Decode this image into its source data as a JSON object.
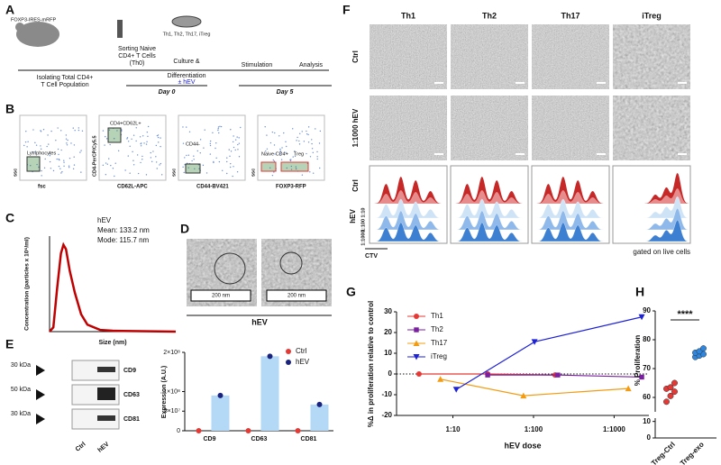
{
  "panel_labels": [
    "A",
    "B",
    "C",
    "D",
    "E",
    "F",
    "G",
    "H"
  ],
  "workflow": {
    "mouse": "FOXP3-IRES-mRFP",
    "subsets": "Th1, Th2, Th17, iTreg",
    "isolate": [
      "Isolating Total CD4+",
      "T Cell Population"
    ],
    "sort": [
      "Sorting Naive",
      "CD4+ T Cells",
      "(Th0)"
    ],
    "culture": [
      "Culture &",
      "Differentiation",
      "± hEV"
    ],
    "stimulation": "Stimulation",
    "analysis": "Analysis",
    "day0": "Day 0",
    "day5": "Day 5"
  },
  "flow_b": {
    "gates": [
      "Lymphocytes",
      "CD4+CD62L+",
      "CD44-",
      "Naive CD4+",
      "Treg"
    ],
    "x_labels": [
      "fsc",
      "CD62L-APC",
      "CD44-BV421",
      "FOXP3-RFP"
    ],
    "y_labels": [
      "ssc",
      "CD4-PerCP/Cy5.5",
      "ssc",
      "ssc"
    ]
  },
  "nta": {
    "name": "hEV",
    "mean": "Mean: 133.2 nm",
    "mode": "Mode: 115.7 nm"
  },
  "cryo_em": {
    "scale_bars": [
      "200 nm",
      "200 nm"
    ],
    "caption": "hEV"
  },
  "western": {
    "markers": [
      {
        "size": "30 kDa",
        "protein": "CD9"
      },
      {
        "size": "50 kDa",
        "protein": "CD63"
      },
      {
        "size": "30 kDa",
        "protein": "CD81"
      }
    ],
    "lanes": [
      "Ctrl",
      "hEV"
    ]
  },
  "imaging": {
    "columns": [
      "Th1",
      "Th2",
      "Th17",
      "iTreg"
    ],
    "rows": [
      "Ctrl",
      "1:1000 hEV"
    ],
    "hist_rows": [
      "Ctrl",
      "hEV"
    ],
    "doses": [
      "1:10",
      "1:100",
      "1:1000"
    ],
    "x_label": "CTV",
    "note": "gated on live cells"
  },
  "chart_data": [
    {
      "type": "line",
      "x_label": "Size (nm)",
      "y_label": "Concentration (particles x 10⁶/ml)",
      "color": "#c00000",
      "x": [
        0,
        30,
        60,
        90,
        110,
        130,
        160,
        200,
        250,
        300,
        400,
        500,
        1000
      ],
      "values": [
        0,
        0.05,
        0.5,
        0.9,
        1.0,
        0.95,
        0.7,
        0.45,
        0.2,
        0.08,
        0.02,
        0.01,
        0
      ],
      "xlim": [
        0,
        1000
      ],
      "ylim": [
        0,
        1.1
      ]
    },
    {
      "type": "bar",
      "y_label": "Expression (A.U.)",
      "categories": [
        "CD9",
        "CD63",
        "CD81"
      ],
      "series": [
        {
          "name": "Ctrl",
          "color": "#e53935",
          "values": [
            0,
            0,
            0
          ]
        },
        {
          "name": "hEV",
          "color": "#1a237e",
          "bar_color": "#b3d9f7",
          "values": [
            90000000,
            190000000,
            67000000
          ]
        }
      ],
      "ylim": [
        0,
        200000000
      ],
      "yticks": [
        0,
        {
          "value": 50000000,
          "label": "5×10⁷"
        },
        {
          "value": 100000000,
          "label": "1×10⁸"
        },
        {
          "value": 200000000,
          "label": "2×10⁸"
        }
      ],
      "legend": "top-right"
    },
    {
      "type": "line",
      "x_label": "hEV dose",
      "y_label": "%Δ in proliferation relative to control",
      "xscale": "log",
      "series": [
        {
          "name": "Th1",
          "color": "#e53935",
          "marker": "circle",
          "x": [
            3.8,
            27,
            185
          ],
          "values": [
            0,
            0,
            -0.5
          ]
        },
        {
          "name": "Th2",
          "color": "#7b1fa2",
          "marker": "square",
          "x": [
            27,
            200,
            2200
          ],
          "values": [
            -0.5,
            -0.5,
            -1.5
          ]
        },
        {
          "name": "Th17",
          "color": "#f39c12",
          "marker": "triangle-up",
          "x": [
            7,
            75,
            1500
          ],
          "values": [
            -2.5,
            -10.5,
            -7
          ]
        },
        {
          "name": "iTreg",
          "color": "#1e22d6",
          "marker": "triangle-down",
          "x": [
            11,
            103,
            2200
          ],
          "values": [
            -7.5,
            15.5,
            27.5
          ]
        }
      ],
      "xlim": [
        2,
        2700
      ],
      "xticks": [
        {
          "value": 10,
          "label": "1:10"
        },
        {
          "value": 100,
          "label": "1:100"
        },
        {
          "value": 1000,
          "label": "1:1000"
        }
      ],
      "ylim": [
        -20,
        30
      ],
      "yticks": [
        -20,
        -10,
        0,
        10,
        20,
        30
      ],
      "reference_line": 0,
      "legend": "top-left"
    },
    {
      "type": "scatter",
      "y_label": "% Proliferation",
      "categories": [
        "Treg-Ctrl",
        "Treg-exo"
      ],
      "colors": [
        "#e53935",
        "#2e86de"
      ],
      "values": [
        [
          58.5,
          60.5,
          62,
          63,
          63.5,
          65
        ],
        [
          74,
          74.5,
          75,
          75.5,
          76,
          77
        ]
      ],
      "ylim": [
        0,
        90
      ],
      "ybreak": [
        12,
        55
      ],
      "yticks": [
        0,
        10,
        60,
        70,
        80,
        90
      ],
      "annotation": "****"
    }
  ]
}
